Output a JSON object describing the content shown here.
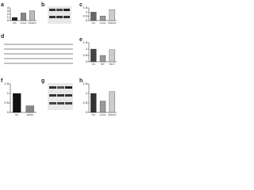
{
  "chart_data": [
    {
      "panel": "a",
      "type": "bar",
      "categories": [
        "NC",
        "mimic",
        "inhibitor"
      ],
      "values": [
        1,
        2.4,
        3.1
      ],
      "colors": [
        "#222222",
        "#888888",
        "#bbbbbb"
      ],
      "ylim": [
        0,
        4
      ],
      "yticks": [
        0,
        1,
        2,
        3,
        4
      ]
    },
    {
      "panel": "c",
      "type": "bar",
      "categories": [
        "NC",
        "mimic",
        "inhibitor"
      ],
      "values": [
        1,
        0.55,
        1.3
      ],
      "colors": [
        "#666666",
        "#999999",
        "#cccccc"
      ],
      "ylim": [
        0,
        1.5
      ],
      "yticks": [
        0,
        0.5,
        1,
        1.5
      ]
    },
    {
      "panel": "e",
      "type": "bar",
      "categories": [
        "NC",
        "WT",
        "MUT"
      ],
      "values": [
        1,
        0.5,
        0.95
      ],
      "colors": [
        "#444444",
        "#999999",
        "#cccccc"
      ],
      "ylim": [
        0,
        1.5
      ],
      "yticks": [
        0,
        0.5,
        1,
        1.5
      ]
    },
    {
      "panel": "f",
      "type": "bar",
      "categories": [
        "NC",
        "siRNA"
      ],
      "values": [
        1,
        0.35
      ],
      "colors": [
        "#111111",
        "#888888"
      ],
      "ylim": [
        0,
        1.5
      ],
      "yticks": [
        0,
        0.5,
        1,
        1.5
      ]
    },
    {
      "panel": "h",
      "type": "bar",
      "categories": [
        "NC",
        "mimic",
        "inhibitor"
      ],
      "values": [
        1,
        0.6,
        1.1
      ],
      "colors": [
        "#333333",
        "#999999",
        "#cccccc"
      ],
      "ylim": [
        0,
        1.5
      ],
      "yticks": [
        0,
        0.5,
        1,
        1.5
      ]
    }
  ],
  "blots": [
    {
      "panel": "b"
    },
    {
      "panel": "d"
    },
    {
      "panel": "g"
    }
  ]
}
